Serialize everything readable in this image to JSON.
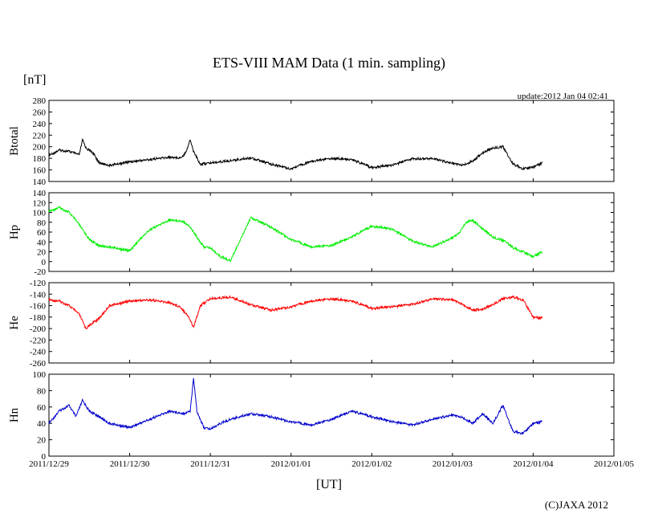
{
  "chart_data": {
    "type": "line",
    "title": "ETS-VIII MAM Data (1 min. sampling)",
    "unit_label": "[nT]",
    "update_label": "update:2012 Jan 04 02:41",
    "xlabel": "[UT]",
    "copyright": "(C)JAXA 2012",
    "x_ticks": [
      "2011/12/29",
      "2011/12/30",
      "2011/12/31",
      "2012/01/01",
      "2012/01/02",
      "2012/01/03",
      "2012/01/04",
      "2012/01/05"
    ],
    "xlim": [
      "2011/12/29 00:00",
      "2012/01/05 00:00"
    ],
    "grid": false,
    "panels": [
      {
        "name": "Btotal",
        "ylabel": "Btotal",
        "color": "#000000",
        "ylim": [
          140,
          280
        ],
        "y_ticks": [
          "280",
          "260",
          "240",
          "220",
          "200",
          "180",
          "160",
          "140"
        ],
        "x": [
          "2011/12/29 00:00",
          "2011/12/29 03:00",
          "2011/12/29 06:00",
          "2011/12/29 09:00",
          "2011/12/29 10:00",
          "2011/12/29 11:00",
          "2011/12/29 13:00",
          "2011/12/29 15:00",
          "2011/12/29 18:00",
          "2011/12/30 00:00",
          "2011/12/30 06:00",
          "2011/12/30 12:00",
          "2011/12/30 15:00",
          "2011/12/30 16:00",
          "2011/12/30 17:00",
          "2011/12/30 18:00",
          "2011/12/30 19:00",
          "2011/12/30 21:00",
          "2011/12/31 00:00",
          "2011/12/31 06:00",
          "2011/12/31 12:00",
          "2011/12/31 18:00",
          "2012/01/01 00:00",
          "2012/01/01 06:00",
          "2012/01/01 12:00",
          "2012/01/01 18:00",
          "2012/01/02 00:00",
          "2012/01/02 06:00",
          "2012/01/02 12:00",
          "2012/01/02 18:00",
          "2012/01/03 00:00",
          "2012/01/03 03:00",
          "2012/01/03 06:00",
          "2012/01/03 09:00",
          "2012/01/03 12:00",
          "2012/01/03 15:00",
          "2012/01/03 18:00",
          "2012/01/03 21:00",
          "2012/01/04 00:00",
          "2012/01/04 02:41"
        ],
        "y": [
          185,
          194,
          192,
          186,
          212,
          198,
          190,
          172,
          168,
          174,
          178,
          182,
          181,
          185,
          195,
          212,
          192,
          170,
          172,
          176,
          181,
          170,
          162,
          175,
          180,
          178,
          164,
          168,
          179,
          180,
          171,
          168,
          175,
          190,
          198,
          200,
          170,
          162,
          165,
          172
        ]
      },
      {
        "name": "Hp",
        "ylabel": "Hp",
        "color": "#00ee00",
        "ylim": [
          -20,
          140
        ],
        "y_ticks": [
          "140",
          "120",
          "100",
          "80",
          "60",
          "40",
          "20",
          "0",
          "-20"
        ],
        "x": [
          "2011/12/29 00:00",
          "2011/12/29 03:00",
          "2011/12/29 06:00",
          "2011/12/29 09:00",
          "2011/12/29 12:00",
          "2011/12/29 15:00",
          "2011/12/29 18:00",
          "2011/12/30 00:00",
          "2011/12/30 03:00",
          "2011/12/30 06:00",
          "2011/12/30 12:00",
          "2011/12/30 16:00",
          "2011/12/30 18:00",
          "2011/12/30 20:00",
          "2011/12/30 22:00",
          "2011/12/31 00:00",
          "2011/12/31 03:00",
          "2011/12/31 06:00",
          "2011/12/31 12:00",
          "2011/12/31 18:00",
          "2012/01/01 00:00",
          "2012/01/01 06:00",
          "2012/01/01 12:00",
          "2012/01/01 18:00",
          "2012/01/02 00:00",
          "2012/01/02 06:00",
          "2012/01/02 12:00",
          "2012/01/02 18:00",
          "2012/01/03 00:00",
          "2012/01/03 02:00",
          "2012/01/03 04:00",
          "2012/01/03 06:00",
          "2012/01/03 12:00",
          "2012/01/03 16:00",
          "2012/01/03 18:00",
          "2012/01/03 21:00",
          "2012/01/04 00:00",
          "2012/01/04 02:41"
        ],
        "y": [
          102,
          110,
          100,
          75,
          45,
          32,
          30,
          22,
          45,
          65,
          85,
          82,
          70,
          50,
          30,
          28,
          10,
          2,
          90,
          70,
          45,
          30,
          33,
          50,
          72,
          66,
          42,
          30,
          48,
          58,
          80,
          84,
          50,
          40,
          28,
          20,
          10,
          20
        ]
      },
      {
        "name": "He",
        "ylabel": "He",
        "color": "#ff0000",
        "ylim": [
          -260,
          -120
        ],
        "y_ticks": [
          "-120",
          "-140",
          "-160",
          "-180",
          "-200",
          "-220",
          "-240",
          "-260"
        ],
        "x": [
          "2011/12/29 00:00",
          "2011/12/29 03:00",
          "2011/12/29 06:00",
          "2011/12/29 09:00",
          "2011/12/29 11:00",
          "2011/12/29 13:00",
          "2011/12/29 15:00",
          "2011/12/29 18:00",
          "2011/12/30 00:00",
          "2011/12/30 06:00",
          "2011/12/30 12:00",
          "2011/12/30 15:00",
          "2011/12/30 17:00",
          "2011/12/30 18:00",
          "2011/12/30 19:00",
          "2011/12/30 21:00",
          "2011/12/31 00:00",
          "2011/12/31 06:00",
          "2011/12/31 12:00",
          "2011/12/31 18:00",
          "2012/01/01 00:00",
          "2012/01/01 06:00",
          "2012/01/01 12:00",
          "2012/01/01 18:00",
          "2012/01/02 00:00",
          "2012/01/02 06:00",
          "2012/01/02 12:00",
          "2012/01/02 18:00",
          "2012/01/03 00:00",
          "2012/01/03 03:00",
          "2012/01/03 06:00",
          "2012/01/03 09:00",
          "2012/01/03 12:00",
          "2012/01/03 15:00",
          "2012/01/03 18:00",
          "2012/01/03 21:00",
          "2012/01/04 00:00",
          "2012/01/04 02:41"
        ],
        "y": [
          -150,
          -152,
          -160,
          -175,
          -200,
          -190,
          -182,
          -160,
          -152,
          -150,
          -155,
          -162,
          -175,
          -185,
          -198,
          -160,
          -148,
          -145,
          -158,
          -168,
          -162,
          -152,
          -148,
          -152,
          -165,
          -162,
          -158,
          -148,
          -150,
          -158,
          -168,
          -166,
          -158,
          -148,
          -145,
          -150,
          -180,
          -182
        ]
      },
      {
        "name": "Hn",
        "ylabel": "Hn",
        "color": "#0000cc",
        "ylim": [
          0,
          100
        ],
        "y_ticks": [
          "100",
          "80",
          "60",
          "40",
          "20",
          "0"
        ],
        "x": [
          "2011/12/29 00:00",
          "2011/12/29 03:00",
          "2011/12/29 06:00",
          "2011/12/29 08:00",
          "2011/12/29 10:00",
          "2011/12/29 12:00",
          "2011/12/29 15:00",
          "2011/12/29 18:00",
          "2011/12/30 00:00",
          "2011/12/30 06:00",
          "2011/12/30 12:00",
          "2011/12/30 16:00",
          "2011/12/30 18:00",
          "2011/12/30 19:00",
          "2011/12/30 20:00",
          "2011/12/30 22:00",
          "2011/12/31 00:00",
          "2011/12/31 03:00",
          "2011/12/31 06:00",
          "2011/12/31 12:00",
          "2011/12/31 18:00",
          "2012/01/01 00:00",
          "2012/01/01 06:00",
          "2012/01/01 12:00",
          "2012/01/01 18:00",
          "2012/01/02 00:00",
          "2012/01/02 06:00",
          "2012/01/02 12:00",
          "2012/01/02 18:00",
          "2012/01/03 00:00",
          "2012/01/03 03:00",
          "2012/01/03 06:00",
          "2012/01/03 09:00",
          "2012/01/03 12:00",
          "2012/01/03 15:00",
          "2012/01/03 18:00",
          "2012/01/03 21:00",
          "2012/01/04 00:00",
          "2012/01/04 02:41"
        ],
        "y": [
          40,
          55,
          62,
          48,
          68,
          55,
          48,
          40,
          35,
          45,
          55,
          52,
          55,
          95,
          55,
          35,
          33,
          40,
          45,
          52,
          48,
          42,
          38,
          45,
          55,
          48,
          42,
          38,
          45,
          50,
          47,
          40,
          52,
          40,
          62,
          30,
          28,
          40,
          42
        ]
      }
    ]
  }
}
